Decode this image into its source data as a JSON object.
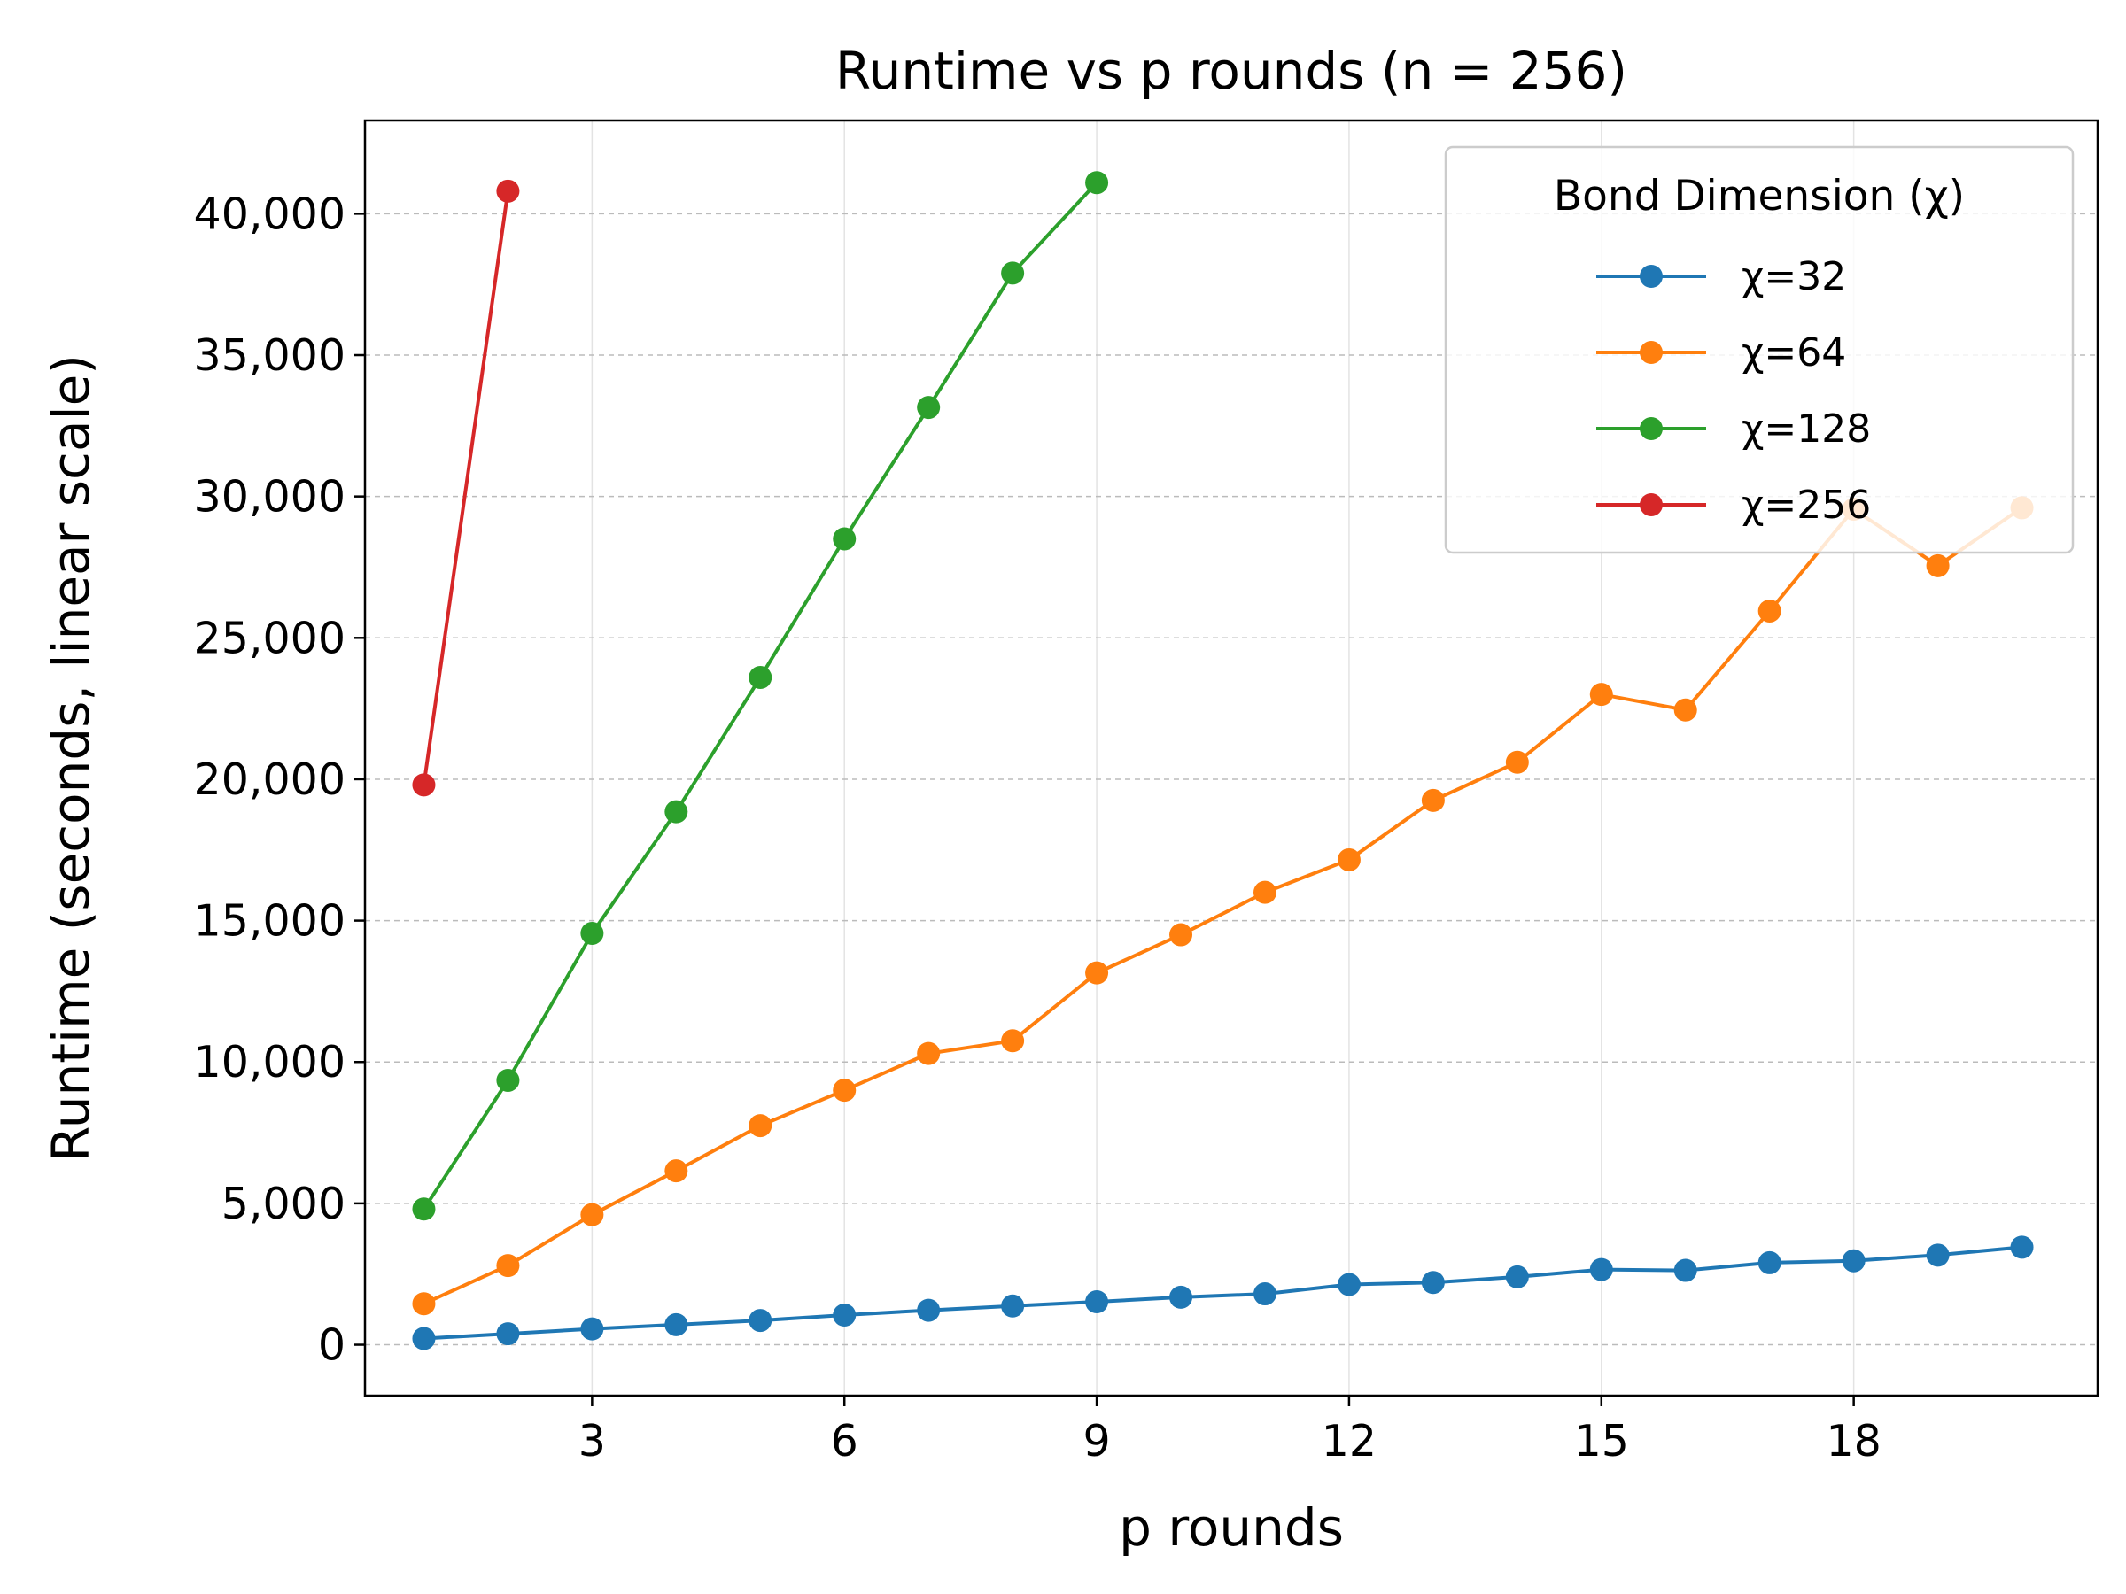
{
  "chart_data": {
    "type": "line",
    "title": "Runtime vs p rounds (n = 256)",
    "xlabel": "p rounds",
    "ylabel": "Runtime (seconds, linear scale)",
    "xlim": [
      0.3,
      20.9
    ],
    "ylim": [
      -1800,
      43300
    ],
    "xticks": [
      3,
      6,
      9,
      12,
      15,
      18
    ],
    "xtick_labels": [
      "3",
      "6",
      "9",
      "12",
      "15",
      "18"
    ],
    "yticks": [
      0,
      5000,
      10000,
      15000,
      20000,
      25000,
      30000,
      35000,
      40000
    ],
    "ytick_labels": [
      "0",
      "5,000",
      "10,000",
      "15,000",
      "20,000",
      "25,000",
      "30,000",
      "35,000",
      "40,000"
    ],
    "grid": "y dashed, x light",
    "legend": {
      "title": "Bond Dimension (χ)",
      "placement": "top-right"
    },
    "series": [
      {
        "name": "χ=32",
        "color": "#1f77b4",
        "x": [
          1,
          2,
          3,
          4,
          5,
          6,
          7,
          8,
          9,
          10,
          11,
          12,
          13,
          14,
          15,
          16,
          17,
          18,
          19,
          20
        ],
        "values": [
          220,
          390,
          560,
          710,
          860,
          1050,
          1220,
          1370,
          1520,
          1680,
          1800,
          2130,
          2200,
          2400,
          2660,
          2630,
          2900,
          2970,
          3170,
          3450
        ]
      },
      {
        "name": "χ=64",
        "color": "#ff7f0e",
        "x": [
          1,
          2,
          3,
          4,
          5,
          6,
          7,
          8,
          9,
          10,
          11,
          12,
          13,
          14,
          15,
          16,
          17,
          18,
          19,
          20
        ],
        "values": [
          1450,
          2800,
          4600,
          6150,
          7750,
          9000,
          10300,
          10750,
          13150,
          14500,
          16000,
          17150,
          19250,
          20600,
          23000,
          22450,
          25950,
          29550,
          27550,
          29600
        ]
      },
      {
        "name": "χ=128",
        "color": "#2ca02c",
        "x": [
          1,
          2,
          3,
          4,
          5,
          6,
          7,
          8,
          9
        ],
        "values": [
          4800,
          9350,
          14550,
          18850,
          23600,
          28500,
          33150,
          37900,
          41100
        ]
      },
      {
        "name": "χ=256",
        "color": "#d62728",
        "x": [
          1,
          2
        ],
        "values": [
          19800,
          40800
        ]
      }
    ]
  }
}
